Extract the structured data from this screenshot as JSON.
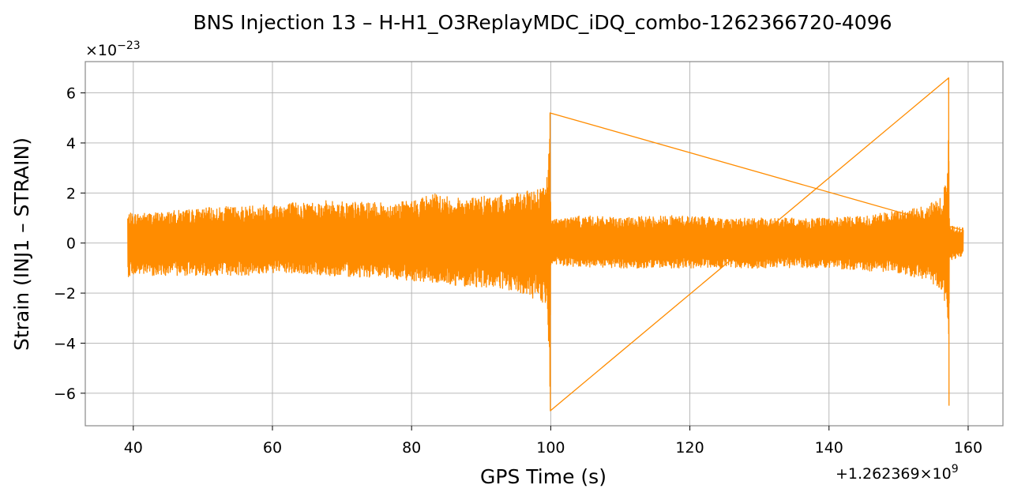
{
  "chart_data": {
    "type": "line",
    "title": "BNS Injection 13 – H-H1_O3ReplayMDC_iDQ_combo-1262366720-4096",
    "xlabel": "GPS Time (s)",
    "ylabel": "Strain (INJ1 – STRAIN)",
    "y_multiplier_label": "×10",
    "y_multiplier_exp": "−23",
    "x_offset_label": "+1.262369×10",
    "x_offset_exp": "9",
    "x_offset_value": 1262369000,
    "y_scale": 1e-23,
    "xlim": [
      33.1,
      165
    ],
    "ylim": [
      -7.3,
      7.25
    ],
    "xticks": [
      40,
      60,
      80,
      100,
      120,
      140,
      160
    ],
    "xtick_labels": [
      "40",
      "60",
      "80",
      "100",
      "120",
      "140",
      "160"
    ],
    "yticks": [
      -6,
      -4,
      -2,
      0,
      2,
      4,
      6
    ],
    "ytick_labels": [
      "−6",
      "−4",
      "−2",
      "0",
      "2",
      "4",
      "6"
    ],
    "grid": true,
    "series": [
      {
        "color": "#ff8c00",
        "x_range": [
          39.2,
          159.3
        ],
        "envelope": {
          "x": [
            39.2,
            39.4,
            44,
            50,
            56,
            60,
            68,
            76,
            80,
            83,
            86,
            92,
            96,
            98.5,
            99.3,
            99.6,
            99.8,
            99.9,
            100.0,
            100.05,
            100.2,
            105,
            110,
            115,
            120,
            125,
            130,
            135,
            140,
            145,
            150,
            154,
            156,
            156.8,
            157.1,
            157.2,
            157.3,
            157.5,
            159.3
          ],
          "upper": [
            1.2,
            1.2,
            1.25,
            1.4,
            1.5,
            1.6,
            1.7,
            1.6,
            1.7,
            2.0,
            1.8,
            1.9,
            2.0,
            2.3,
            2.4,
            3.0,
            4.2,
            5.2,
            1.0,
            1.0,
            1.0,
            1.1,
            1.0,
            1.1,
            1.1,
            1.0,
            1.0,
            1.0,
            1.0,
            1.1,
            1.3,
            1.5,
            1.8,
            2.4,
            4.0,
            6.6,
            0.9,
            0.7,
            0.6
          ],
          "lower": [
            -1.4,
            -1.3,
            -1.3,
            -1.3,
            -1.3,
            -1.2,
            -1.3,
            -1.4,
            -1.5,
            -1.6,
            -1.7,
            -1.8,
            -2.1,
            -2.3,
            -2.6,
            -3.2,
            -5.0,
            -6.7,
            -1.0,
            -0.9,
            -0.9,
            -1.0,
            -1.0,
            -1.0,
            -1.0,
            -1.0,
            -1.0,
            -1.0,
            -1.0,
            -1.1,
            -1.2,
            -1.5,
            -1.8,
            -2.6,
            -4.2,
            -6.5,
            -0.8,
            -0.7,
            -0.5
          ]
        }
      }
    ]
  }
}
